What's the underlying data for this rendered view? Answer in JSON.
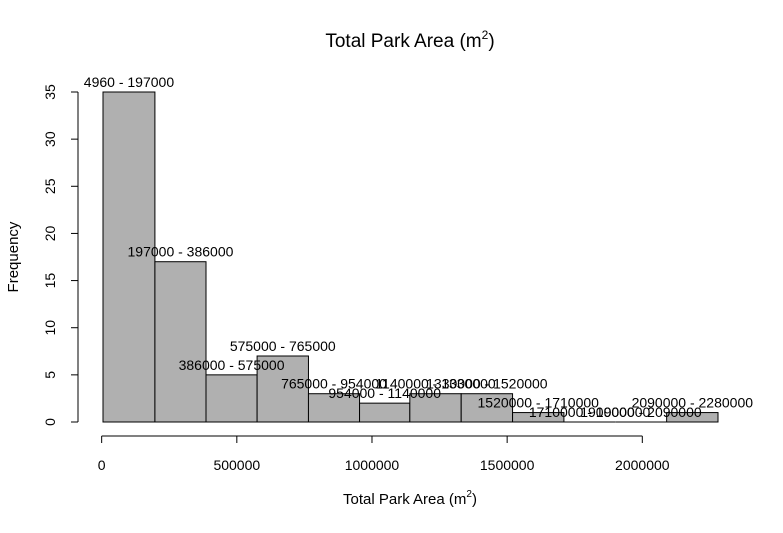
{
  "chart_data": {
    "type": "bar",
    "title": "Total Park Area (m²)",
    "title_parts": {
      "main": "Total Park Area (m",
      "sup": "2",
      "close": ")"
    },
    "xlabel": "Total Park Area (m²)",
    "xlabel_parts": {
      "main": "Total Park Area (m",
      "sup": "2",
      "close": ")"
    },
    "ylabel": "Frequency",
    "xlim": [
      4960,
      2280000
    ],
    "ylim": [
      0,
      35
    ],
    "grid": false,
    "legend": "none",
    "bar_color": "#b0b0b0",
    "xticks": [
      0,
      500000,
      1000000,
      1500000,
      2000000
    ],
    "xtick_labels": [
      "0",
      "500000",
      "1000000",
      "1500000",
      "2000000"
    ],
    "yticks": [
      0,
      5,
      10,
      15,
      20,
      25,
      30,
      35
    ],
    "ytick_labels": [
      "0",
      "5",
      "10",
      "15",
      "20",
      "25",
      "30",
      "35"
    ],
    "bins": [
      {
        "start": 4960,
        "end": 197000,
        "count": 35,
        "label": "4960 - 197000"
      },
      {
        "start": 197000,
        "end": 386000,
        "count": 17,
        "label": "197000 - 386000"
      },
      {
        "start": 386000,
        "end": 575000,
        "count": 5,
        "label": "386000 - 575000"
      },
      {
        "start": 575000,
        "end": 765000,
        "count": 7,
        "label": "575000 - 765000"
      },
      {
        "start": 765000,
        "end": 954000,
        "count": 3,
        "label": "765000 - 954000"
      },
      {
        "start": 954000,
        "end": 1140000,
        "count": 2,
        "label": "954000 - 1140000"
      },
      {
        "start": 1140000,
        "end": 1330000,
        "count": 3,
        "label": "1140000 - 1330000"
      },
      {
        "start": 1330000,
        "end": 1520000,
        "count": 3,
        "label": "1330000 - 1520000"
      },
      {
        "start": 1520000,
        "end": 1710000,
        "count": 1,
        "label": "1520000 - 1710000"
      },
      {
        "start": 1710000,
        "end": 1900000,
        "count": 0,
        "label": "1710000 - 1900000"
      },
      {
        "start": 1900000,
        "end": 2090000,
        "count": 0,
        "label": "1900000 - 2090000"
      },
      {
        "start": 2090000,
        "end": 2280000,
        "count": 1,
        "label": "2090000 - 2280000"
      }
    ]
  }
}
